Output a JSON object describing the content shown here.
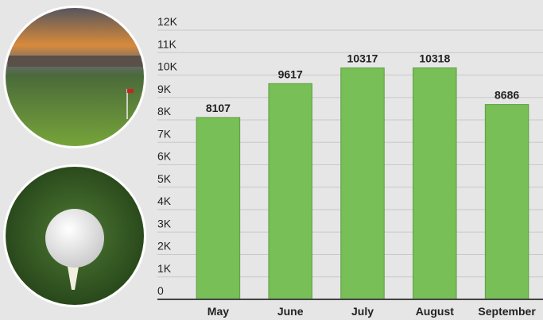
{
  "chart_data": {
    "type": "bar",
    "categories": [
      "May",
      "June",
      "July",
      "August",
      "September"
    ],
    "values": [
      8107,
      9617,
      10317,
      10318,
      8686
    ],
    "color": "#77bf56",
    "ylim": [
      0,
      12000
    ],
    "yticks": [
      0,
      {
        "value": 1000,
        "label": "1K"
      },
      {
        "value": 2000,
        "label": "2K"
      },
      {
        "value": 3000,
        "label": "3K"
      },
      {
        "value": 4000,
        "label": "4K"
      },
      {
        "value": 5000,
        "label": "5K"
      },
      {
        "value": 6000,
        "label": "6K"
      },
      {
        "value": 7000,
        "label": "7K"
      },
      {
        "value": 8000,
        "label": "8K"
      },
      {
        "value": 9000,
        "label": "9K"
      },
      {
        "value": 10000,
        "label": "10K"
      },
      {
        "value": 11000,
        "label": "11K"
      },
      {
        "value": 12000,
        "label": "12K"
      }
    ],
    "grid": true
  }
}
